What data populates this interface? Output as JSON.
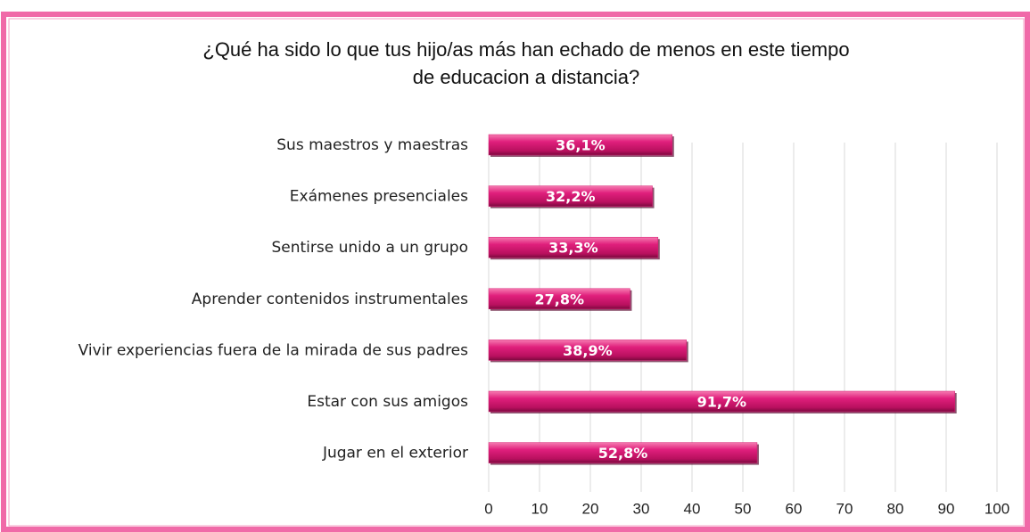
{
  "chart_data": {
    "type": "bar",
    "orientation": "horizontal",
    "title": "¿Qué ha sido lo que tus hijo/as más han echado de menos en este tiempo de educacion a distancia?",
    "categories": [
      "Sus maestros y maestras",
      "Exámenes presenciales",
      "Sentirse unido a un grupo",
      "Aprender contenidos instrumentales",
      "Vivir experiencias fuera de la mirada de sus padres",
      "Estar con sus amigos",
      "Jugar en el exterior"
    ],
    "values": [
      36.1,
      32.2,
      33.3,
      27.8,
      38.9,
      91.7,
      52.8
    ],
    "value_labels": [
      "36,1%",
      "32,2%",
      "33,3%",
      "27,8%",
      "38,9%",
      "91,7%",
      "52,8%"
    ],
    "color": "#d81b72",
    "xlim": [
      0,
      100
    ],
    "xticks": [
      0,
      10,
      20,
      30,
      40,
      50,
      60,
      70,
      80,
      90,
      100
    ],
    "grid": true
  }
}
